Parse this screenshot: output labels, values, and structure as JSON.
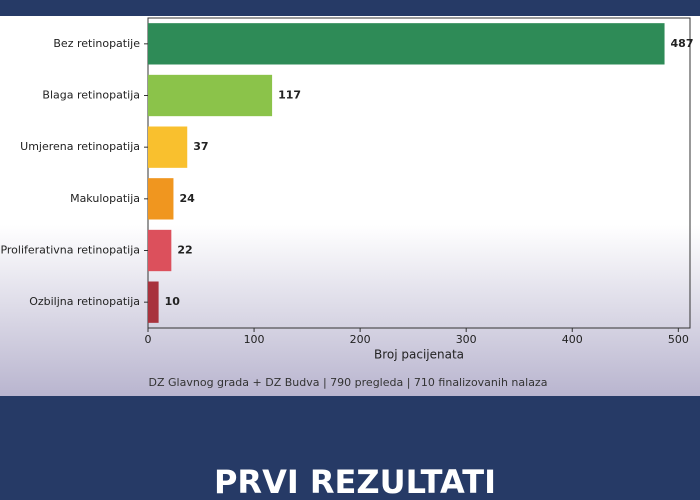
{
  "chart_data": {
    "type": "hbar",
    "categories": [
      "Bez retinopatije",
      "Blaga retinopatija",
      "Umjerena retinopatija",
      "Makulopatija",
      "Proliferativna retinopatija",
      "Ozbiljna retinopatija"
    ],
    "values": [
      487,
      117,
      37,
      24,
      22,
      10
    ],
    "colors": [
      "#2e8b57",
      "#8bc34a",
      "#f9c02e",
      "#f0961f",
      "#dc505c",
      "#a8323d"
    ],
    "xlabel": "Broj pacijenata",
    "xlim": [
      0,
      511
    ],
    "xticks": [
      0,
      100,
      200,
      300,
      400,
      500
    ],
    "caption": "DZ Glavnog grada + DZ Budva | 790 pregleda | 710 finalizovanih nalaza"
  },
  "footer": {
    "title": "PRVI REZULTATI"
  }
}
